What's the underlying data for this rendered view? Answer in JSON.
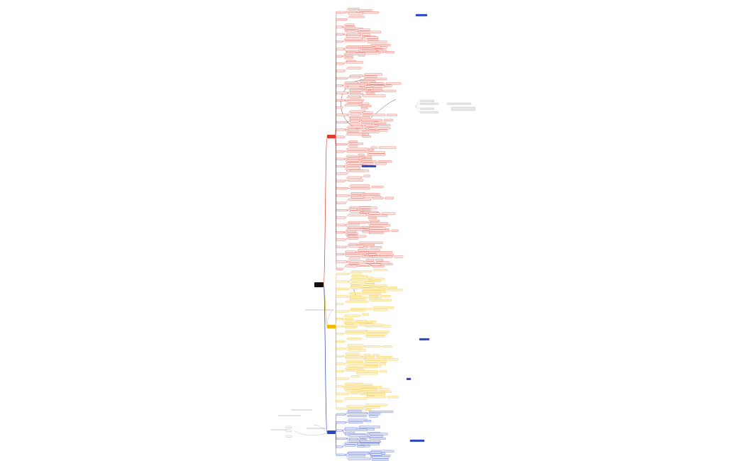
{
  "root": {
    "label": ""
  },
  "colors": {
    "root": "#111111",
    "red": "#e23a2b",
    "red_fill": "#fbe3e0",
    "yellow": "#f2b705",
    "yellow_fill": "#fdf3cf",
    "blue": "#2b47c9",
    "blue_fill": "#dfe5f7",
    "gray": "#b9b9b9",
    "gray_fill": "#e6e6e6",
    "note_line": "#8a8a8a"
  },
  "branches": [
    {
      "name": "red",
      "label": "",
      "count_children": 150
    },
    {
      "name": "yellow",
      "label": "",
      "count_children": 110
    },
    {
      "name": "blue",
      "label": "",
      "count_children": 34
    }
  ]
}
